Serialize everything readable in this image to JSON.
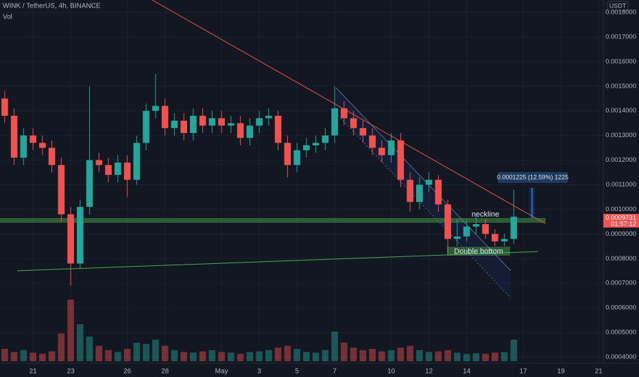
{
  "chart_data": {
    "type": "candlestick",
    "title": "WINK / TetherUS, 4h, BINANCE",
    "y_axis_unit": "USDT",
    "x": [
      -0.5,
      0,
      0.5,
      1,
      1.5,
      2,
      2.5,
      3,
      3.5,
      4,
      4.5,
      5,
      5.5,
      6,
      6.5,
      7,
      7.5,
      8,
      8.5,
      9,
      9.5,
      10,
      10.5,
      11,
      11.5,
      12,
      12.5,
      13,
      13.5,
      14,
      14.5,
      15,
      15.5,
      16,
      16.5,
      17,
      17.5,
      18,
      18.5,
      19,
      19.5,
      20,
      20.5,
      21,
      21.5,
      22,
      22.5,
      23,
      23.5,
      24,
      24.5,
      25,
      25.5,
      26,
      26.5
    ],
    "open": [
      0.00145,
      0.00138,
      0.00121,
      0.0013,
      0.00127,
      0.00125,
      0.00118,
      0.00098,
      0.00078,
      0.00101,
      0.0012,
      0.00118,
      0.00114,
      0.00119,
      0.00112,
      0.00127,
      0.0014,
      0.00142,
      0.00133,
      0.00136,
      0.00131,
      0.00138,
      0.00134,
      0.00137,
      0.00134,
      0.00135,
      0.00129,
      0.00134,
      0.00137,
      0.00138,
      0.00127,
      0.00118,
      0.00124,
      0.00126,
      0.00127,
      0.0013,
      0.00141,
      0.00137,
      0.00133,
      0.0013,
      0.00125,
      0.00122,
      0.00128,
      0.00112,
      0.00103,
      0.0011,
      0.00112,
      0.00102,
      0.00088,
      0.00089,
      0.00093,
      0.00094,
      0.0009,
      0.00087,
      0.00088
    ],
    "high": [
      0.00148,
      0.00141,
      0.00133,
      0.00133,
      0.0013,
      0.00128,
      0.00121,
      0.00101,
      0.00104,
      0.0015,
      0.00123,
      0.00121,
      0.00122,
      0.00122,
      0.0013,
      0.00143,
      0.00155,
      0.00145,
      0.00139,
      0.00139,
      0.00141,
      0.00141,
      0.0014,
      0.0014,
      0.00138,
      0.00138,
      0.00137,
      0.0014,
      0.00141,
      0.0014,
      0.0013,
      0.00127,
      0.00129,
      0.0013,
      0.00133,
      0.0015,
      0.00144,
      0.0014,
      0.00136,
      0.00133,
      0.00128,
      0.00131,
      0.00131,
      0.00115,
      0.00113,
      0.00115,
      0.00114,
      0.00104,
      0.00096,
      0.00096,
      0.00097,
      0.00096,
      0.00092,
      0.0009,
      0.00108
    ],
    "low": [
      0.00135,
      0.00118,
      0.00118,
      0.00124,
      0.00122,
      0.00115,
      0.00095,
      0.00069,
      0.00076,
      0.00098,
      0.00115,
      0.00111,
      0.00111,
      0.00105,
      0.0011,
      0.00124,
      0.00137,
      0.0013,
      0.0013,
      0.00128,
      0.00128,
      0.00131,
      0.00131,
      0.00131,
      0.00131,
      0.00126,
      0.00126,
      0.00131,
      0.00134,
      0.00124,
      0.00113,
      0.00115,
      0.00121,
      0.00123,
      0.00124,
      0.00127,
      0.00134,
      0.0013,
      0.00127,
      0.00122,
      0.00119,
      0.00119,
      0.00109,
      0.00099,
      0.001,
      0.00107,
      0.00099,
      0.00082,
      0.00085,
      0.00087,
      0.0009,
      0.00088,
      0.00085,
      0.00085,
      0.00086
    ],
    "close": [
      0.00138,
      0.00121,
      0.0013,
      0.00127,
      0.00125,
      0.00118,
      0.00098,
      0.00078,
      0.00101,
      0.0012,
      0.00118,
      0.00114,
      0.00119,
      0.00112,
      0.00127,
      0.0014,
      0.00142,
      0.00133,
      0.00136,
      0.00131,
      0.00138,
      0.00134,
      0.00137,
      0.00134,
      0.00135,
      0.00129,
      0.00134,
      0.00137,
      0.00138,
      0.00127,
      0.00118,
      0.00124,
      0.00126,
      0.00127,
      0.0013,
      0.00141,
      0.00137,
      0.00133,
      0.0013,
      0.00125,
      0.00122,
      0.00128,
      0.00112,
      0.00103,
      0.0011,
      0.00112,
      0.00102,
      0.00088,
      0.00089,
      0.00093,
      0.00094,
      0.0009,
      0.00087,
      0.00088,
      0.00097
    ],
    "volume": {
      "name": "Vol",
      "values": [
        20,
        15,
        18,
        14,
        12,
        16,
        45,
        100,
        60,
        40,
        25,
        18,
        15,
        20,
        30,
        28,
        35,
        25,
        18,
        15,
        14,
        16,
        18,
        15,
        14,
        12,
        15,
        16,
        18,
        22,
        25,
        20,
        15,
        14,
        18,
        48,
        30,
        22,
        18,
        20,
        16,
        18,
        22,
        25,
        18,
        15,
        16,
        18,
        14,
        12,
        13,
        12,
        14,
        15,
        35
      ]
    },
    "volume_lim": [
      0,
      100
    ],
    "up_color": "#26a69a",
    "down_color": "#ef5350",
    "xlim": [
      -0.75,
      31.25
    ],
    "xticks": [
      {
        "value": 1,
        "label": "21"
      },
      {
        "value": 3,
        "label": "23"
      },
      {
        "value": 6,
        "label": "26"
      },
      {
        "value": 8,
        "label": "28"
      },
      {
        "value": 11,
        "label": "May"
      },
      {
        "value": 13,
        "label": "3"
      },
      {
        "value": 15,
        "label": "5"
      },
      {
        "value": 17,
        "label": "7"
      },
      {
        "value": 20,
        "label": "10"
      },
      {
        "value": 22,
        "label": "12"
      },
      {
        "value": 24,
        "label": "14"
      },
      {
        "value": 27,
        "label": "17"
      },
      {
        "value": 29,
        "label": "19"
      },
      {
        "value": 31,
        "label": "21"
      }
    ],
    "ylim": [
      0.000375,
      0.00185
    ],
    "yticks": [
      {
        "value": 0.0018,
        "label": "0.0018000"
      },
      {
        "value": 0.0017,
        "label": "0.0017000"
      },
      {
        "value": 0.0016,
        "label": "0.0016000"
      },
      {
        "value": 0.0015,
        "label": "0.0015000"
      },
      {
        "value": 0.0014,
        "label": "0.0014000"
      },
      {
        "value": 0.0013,
        "label": "0.0013000"
      },
      {
        "value": 0.0012,
        "label": "0.0012000"
      },
      {
        "value": 0.0011,
        "label": "0.0011000"
      },
      {
        "value": 0.001,
        "label": "0.0010000"
      },
      {
        "value": 0.0009,
        "label": "0.0009000"
      },
      {
        "value": 0.0008,
        "label": "0.0008000"
      },
      {
        "value": 0.0007,
        "label": "0.0007000"
      },
      {
        "value": 0.0006,
        "label": "0.0006000"
      },
      {
        "value": 0.0005,
        "label": "0.0005000"
      },
      {
        "value": 0.0004,
        "label": "0.0004000"
      }
    ],
    "grid": true,
    "annotations": {
      "neckline": "neckline",
      "pattern": "Double bottom",
      "measure": "0.0001225 (12.59%) 1225"
    },
    "last_price_label": "0.0009731",
    "countdown": "01:57:12"
  }
}
